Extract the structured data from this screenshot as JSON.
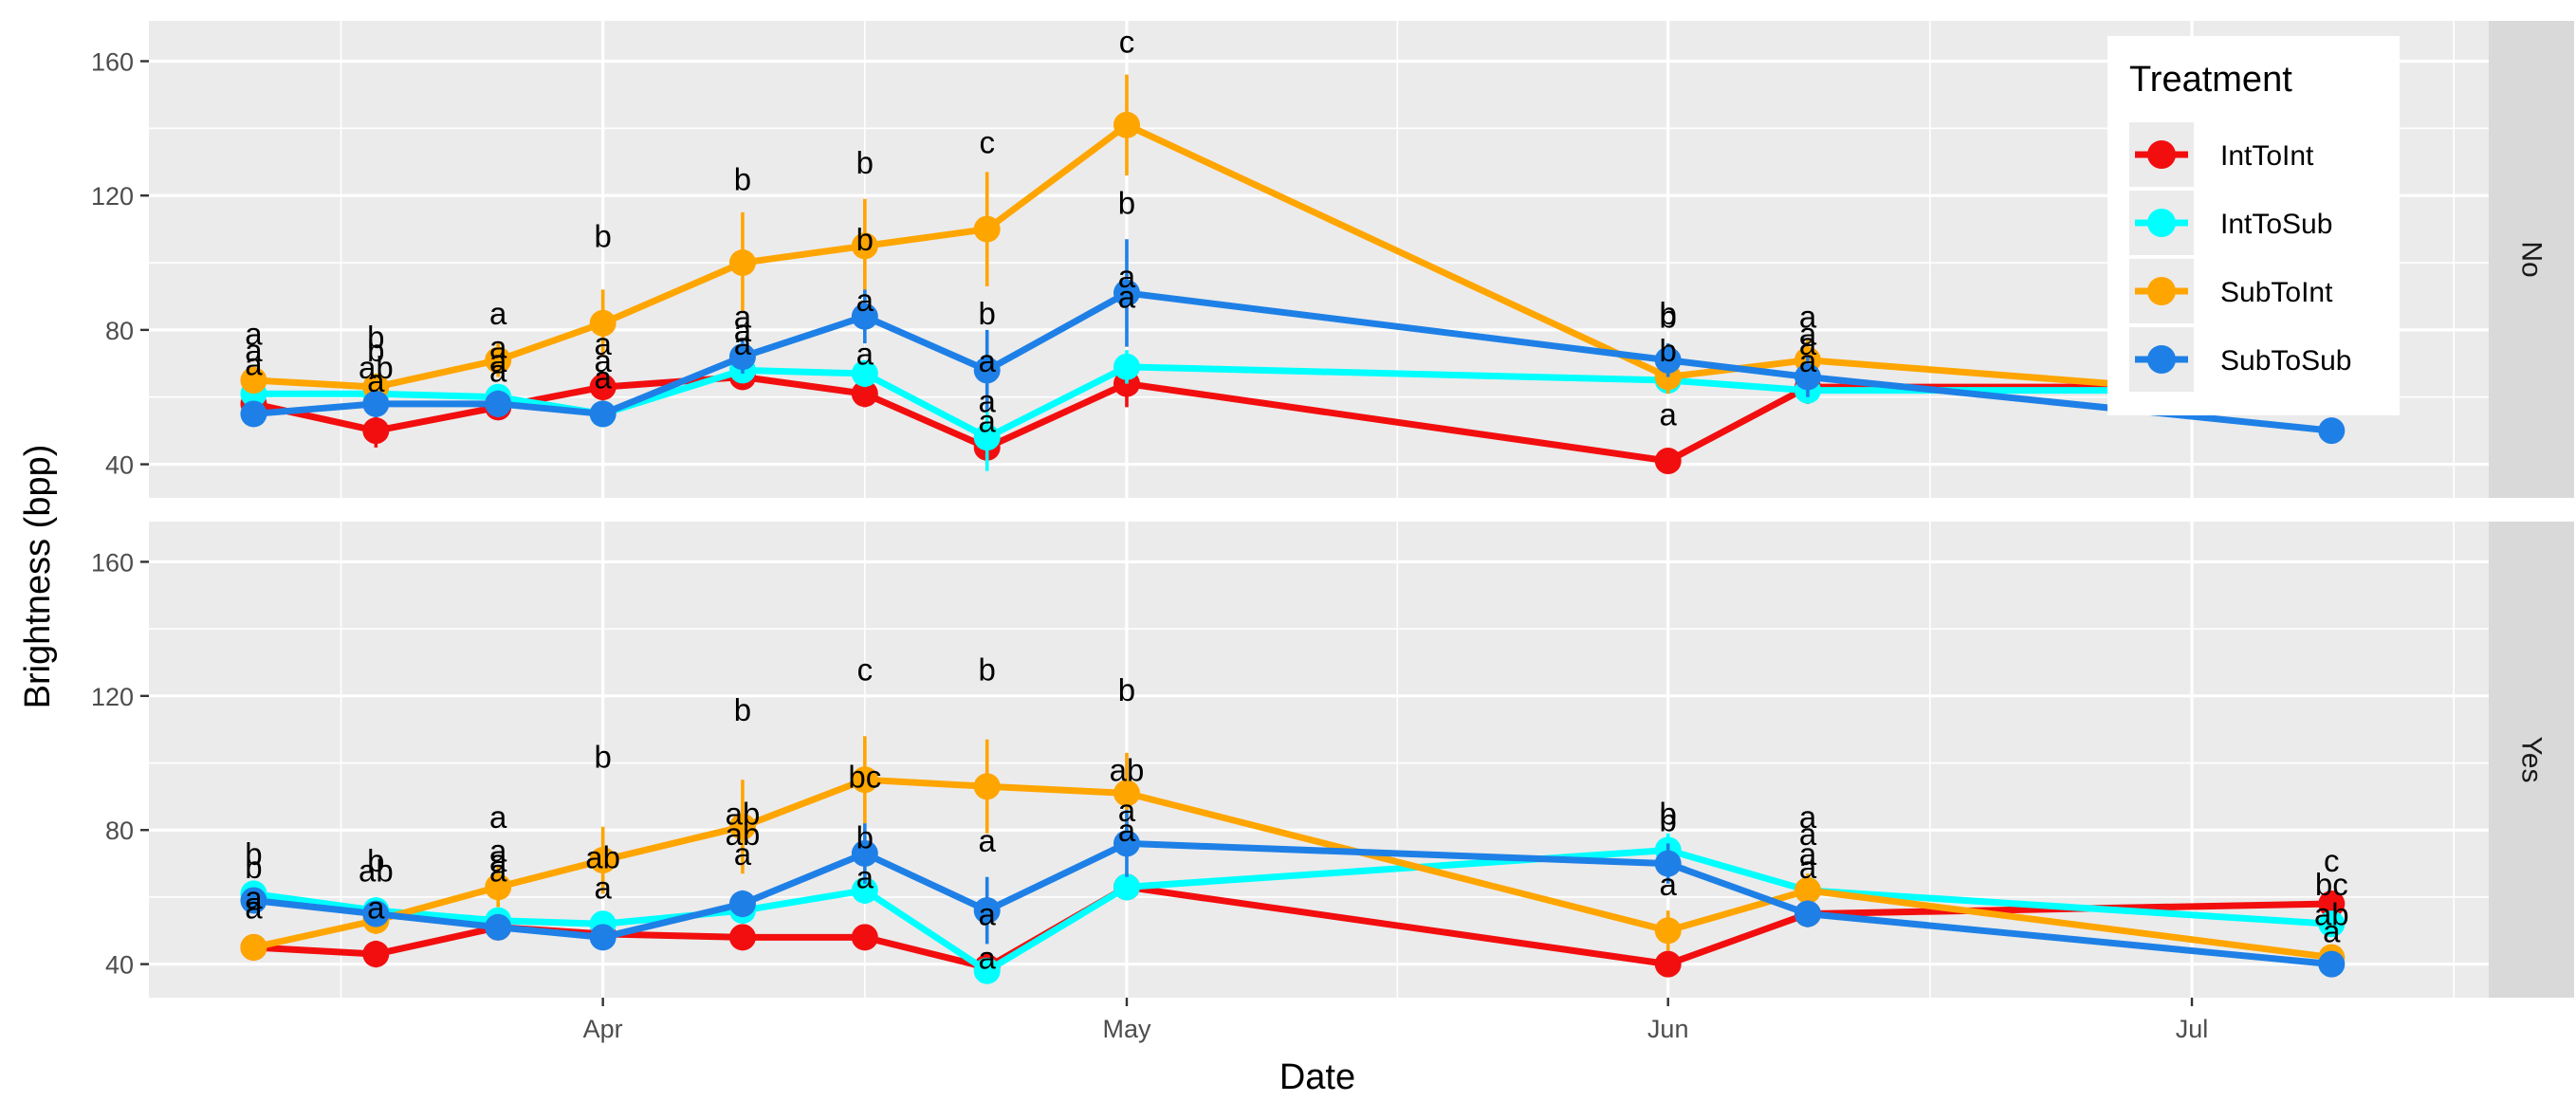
{
  "chart_data": {
    "type": "line",
    "xlabel": "Date",
    "ylabel": "Brightness (bpp)",
    "x_ticks": [
      {
        "date": "2021-04-01",
        "label": "Apr"
      },
      {
        "date": "2021-05-01",
        "label": "May"
      },
      {
        "date": "2021-06-01",
        "label": "Jun"
      },
      {
        "date": "2021-07-01",
        "label": "Jul"
      }
    ],
    "x_range": [
      "2021-03-06",
      "2021-07-18"
    ],
    "y_ticks": [
      40,
      80,
      120,
      160
    ],
    "ylim": [
      30,
      172
    ],
    "grid": true,
    "legend": {
      "title": "Treatment",
      "placement": "top-right",
      "entries": [
        "IntToInt",
        "IntToSub",
        "SubToInt",
        "SubToSub"
      ]
    },
    "colors": {
      "IntToInt": "#f20e0e",
      "IntToSub": "#00ffff",
      "SubToInt": "#ffa500",
      "SubToSub": "#1e80e6"
    },
    "panels": [
      {
        "label": "No",
        "series": [
          {
            "name": "IntToInt",
            "dates": [
              "2021-03-12",
              "2021-03-19",
              "2021-03-26",
              "2021-04-01",
              "2021-04-09",
              "2021-04-16",
              "2021-04-23",
              "2021-05-01",
              "2021-06-01",
              "2021-06-09",
              "2021-07-09"
            ],
            "values": [
              58,
              50,
              57,
              63,
              66,
              61,
              45,
              64,
              41,
              63,
              63
            ],
            "errors": [
              3,
              5,
              3,
              4,
              3,
              4,
              5,
              7,
              3,
              5,
              3
            ]
          },
          {
            "name": "IntToSub",
            "dates": [
              "2021-03-12",
              "2021-03-19",
              "2021-03-26",
              "2021-04-01",
              "2021-04-09",
              "2021-04-16",
              "2021-04-23",
              "2021-05-01",
              "2021-06-01",
              "2021-06-09",
              "2021-07-09"
            ],
            "values": [
              61,
              61,
              60,
              55,
              68,
              67,
              48,
              69,
              65,
              62,
              62
            ],
            "errors": [
              3,
              3,
              3,
              3,
              3,
              4,
              10,
              5,
              4,
              3,
              3
            ]
          },
          {
            "name": "SubToInt",
            "dates": [
              "2021-03-12",
              "2021-03-19",
              "2021-03-26",
              "2021-04-01",
              "2021-04-09",
              "2021-04-16",
              "2021-04-23",
              "2021-05-01",
              "2021-06-01",
              "2021-06-09",
              "2021-07-09"
            ],
            "values": [
              65,
              63,
              71,
              82,
              100,
              105,
              110,
              141,
              66,
              71,
              59
            ],
            "errors": [
              4,
              4,
              5,
              10,
              15,
              14,
              17,
              15,
              5,
              6,
              4
            ]
          },
          {
            "name": "SubToSub",
            "dates": [
              "2021-03-12",
              "2021-03-19",
              "2021-03-26",
              "2021-04-01",
              "2021-04-09",
              "2021-04-16",
              "2021-04-23",
              "2021-05-01",
              "2021-06-01",
              "2021-06-09",
              "2021-07-09"
            ],
            "values": [
              55,
              58,
              58,
              55,
              72,
              84,
              68,
              91,
              71,
              66,
              50
            ],
            "errors": [
              3,
              4,
              4,
              3,
              5,
              8,
              12,
              16,
              5,
              6,
              3
            ]
          }
        ],
        "significance_labels": [
          {
            "date": "2021-03-12",
            "value": 79,
            "text": "a"
          },
          {
            "date": "2021-03-12",
            "value": 74,
            "text": "a"
          },
          {
            "date": "2021-03-12",
            "value": 70,
            "text": "a"
          },
          {
            "date": "2021-03-19",
            "value": 78,
            "text": "b"
          },
          {
            "date": "2021-03-19",
            "value": 74,
            "text": "b"
          },
          {
            "date": "2021-03-19",
            "value": 69,
            "text": "ab"
          },
          {
            "date": "2021-03-19",
            "value": 65,
            "text": "a"
          },
          {
            "date": "2021-03-26",
            "value": 85,
            "text": "a"
          },
          {
            "date": "2021-03-26",
            "value": 75,
            "text": "a"
          },
          {
            "date": "2021-03-26",
            "value": 71,
            "text": "a"
          },
          {
            "date": "2021-03-26",
            "value": 68,
            "text": "a"
          },
          {
            "date": "2021-04-01",
            "value": 108,
            "text": "b"
          },
          {
            "date": "2021-04-01",
            "value": 76,
            "text": "a"
          },
          {
            "date": "2021-04-01",
            "value": 71,
            "text": "a"
          },
          {
            "date": "2021-04-01",
            "value": 66,
            "text": "a"
          },
          {
            "date": "2021-04-09",
            "value": 125,
            "text": "b"
          },
          {
            "date": "2021-04-09",
            "value": 84,
            "text": "a"
          },
          {
            "date": "2021-04-09",
            "value": 80,
            "text": "a"
          },
          {
            "date": "2021-04-09",
            "value": 76,
            "text": "a"
          },
          {
            "date": "2021-04-16",
            "value": 130,
            "text": "b"
          },
          {
            "date": "2021-04-16",
            "value": 107,
            "text": "b"
          },
          {
            "date": "2021-04-16",
            "value": 89,
            "text": "a"
          },
          {
            "date": "2021-04-16",
            "value": 73,
            "text": "a"
          },
          {
            "date": "2021-04-23",
            "value": 136,
            "text": "c"
          },
          {
            "date": "2021-04-23",
            "value": 85,
            "text": "b"
          },
          {
            "date": "2021-04-23",
            "value": 71,
            "text": "a"
          },
          {
            "date": "2021-04-23",
            "value": 59,
            "text": "a"
          },
          {
            "date": "2021-04-23",
            "value": 53,
            "text": "a"
          },
          {
            "date": "2021-05-01",
            "value": 166,
            "text": "c"
          },
          {
            "date": "2021-05-01",
            "value": 118,
            "text": "b"
          },
          {
            "date": "2021-05-01",
            "value": 96,
            "text": "a"
          },
          {
            "date": "2021-05-01",
            "value": 90,
            "text": "a"
          },
          {
            "date": "2021-06-01",
            "value": 85,
            "text": "b"
          },
          {
            "date": "2021-06-01",
            "value": 84,
            "text": "b"
          },
          {
            "date": "2021-06-01",
            "value": 74,
            "text": "b"
          },
          {
            "date": "2021-06-01",
            "value": 55,
            "text": "a"
          },
          {
            "date": "2021-06-09",
            "value": 84,
            "text": "a"
          },
          {
            "date": "2021-06-09",
            "value": 79,
            "text": "a"
          },
          {
            "date": "2021-06-09",
            "value": 76,
            "text": "a"
          },
          {
            "date": "2021-06-09",
            "value": 71,
            "text": "a"
          }
        ]
      },
      {
        "label": "Yes",
        "series": [
          {
            "name": "IntToInt",
            "dates": [
              "2021-03-12",
              "2021-03-19",
              "2021-03-26",
              "2021-04-01",
              "2021-04-09",
              "2021-04-16",
              "2021-04-23",
              "2021-05-01",
              "2021-06-01",
              "2021-06-09",
              "2021-07-09"
            ],
            "values": [
              45,
              43,
              51,
              49,
              48,
              48,
              39,
              63,
              40,
              55,
              58
            ],
            "errors": [
              3,
              4,
              3,
              3,
              3,
              3,
              4,
              4,
              3,
              3,
              3
            ]
          },
          {
            "name": "IntToSub",
            "dates": [
              "2021-03-12",
              "2021-03-19",
              "2021-03-26",
              "2021-04-01",
              "2021-04-09",
              "2021-04-16",
              "2021-04-23",
              "2021-05-01",
              "2021-06-01",
              "2021-06-09",
              "2021-07-09"
            ],
            "values": [
              61,
              56,
              53,
              52,
              56,
              62,
              38,
              63,
              74,
              62,
              52
            ],
            "errors": [
              3,
              3,
              3,
              3,
              3,
              4,
              3,
              4,
              5,
              4,
              3
            ]
          },
          {
            "name": "SubToInt",
            "dates": [
              "2021-03-12",
              "2021-03-19",
              "2021-03-26",
              "2021-04-01",
              "2021-04-09",
              "2021-04-16",
              "2021-04-23",
              "2021-05-01",
              "2021-06-01",
              "2021-06-09",
              "2021-07-09"
            ],
            "values": [
              45,
              53,
              63,
              71,
              81,
              95,
              93,
              91,
              50,
              62,
              42
            ],
            "errors": [
              4,
              4,
              6,
              10,
              14,
              13,
              14,
              12,
              6,
              5,
              3
            ]
          },
          {
            "name": "SubToSub",
            "dates": [
              "2021-03-12",
              "2021-03-19",
              "2021-03-26",
              "2021-04-01",
              "2021-04-09",
              "2021-04-16",
              "2021-04-23",
              "2021-05-01",
              "2021-06-01",
              "2021-06-09",
              "2021-07-09"
            ],
            "values": [
              59,
              55,
              51,
              48,
              58,
              73,
              56,
              76,
              70,
              55,
              40
            ],
            "errors": [
              3,
              3,
              3,
              3,
              4,
              9,
              10,
              10,
              6,
              4,
              2
            ]
          }
        ],
        "significance_labels": [
          {
            "date": "2021-03-12",
            "value": 73,
            "text": "b"
          },
          {
            "date": "2021-03-12",
            "value": 69,
            "text": "b"
          },
          {
            "date": "2021-03-12",
            "value": 60,
            "text": "a"
          },
          {
            "date": "2021-03-12",
            "value": 57,
            "text": "a"
          },
          {
            "date": "2021-03-19",
            "value": 71,
            "text": "b"
          },
          {
            "date": "2021-03-19",
            "value": 68,
            "text": "ab"
          },
          {
            "date": "2021-03-19",
            "value": 57,
            "text": "a"
          },
          {
            "date": "2021-03-26",
            "value": 84,
            "text": "a"
          },
          {
            "date": "2021-03-26",
            "value": 74,
            "text": "a"
          },
          {
            "date": "2021-03-26",
            "value": 71,
            "text": "a"
          },
          {
            "date": "2021-03-26",
            "value": 68,
            "text": "a"
          },
          {
            "date": "2021-04-01",
            "value": 102,
            "text": "b"
          },
          {
            "date": "2021-04-01",
            "value": 72,
            "text": "ab"
          },
          {
            "date": "2021-04-01",
            "value": 63,
            "text": "a"
          },
          {
            "date": "2021-04-09",
            "value": 116,
            "text": "b"
          },
          {
            "date": "2021-04-09",
            "value": 85,
            "text": "ab"
          },
          {
            "date": "2021-04-09",
            "value": 79,
            "text": "ab"
          },
          {
            "date": "2021-04-09",
            "value": 73,
            "text": "a"
          },
          {
            "date": "2021-04-16",
            "value": 128,
            "text": "c"
          },
          {
            "date": "2021-04-16",
            "value": 96,
            "text": "bc"
          },
          {
            "date": "2021-04-16",
            "value": 78,
            "text": "b"
          },
          {
            "date": "2021-04-16",
            "value": 66,
            "text": "a"
          },
          {
            "date": "2021-04-23",
            "value": 128,
            "text": "b"
          },
          {
            "date": "2021-04-23",
            "value": 77,
            "text": "a"
          },
          {
            "date": "2021-04-23",
            "value": 55,
            "text": "a"
          },
          {
            "date": "2021-04-23",
            "value": 42,
            "text": "a"
          },
          {
            "date": "2021-05-01",
            "value": 122,
            "text": "b"
          },
          {
            "date": "2021-05-01",
            "value": 98,
            "text": "ab"
          },
          {
            "date": "2021-05-01",
            "value": 86,
            "text": "a"
          },
          {
            "date": "2021-05-01",
            "value": 80,
            "text": "a"
          },
          {
            "date": "2021-06-01",
            "value": 85,
            "text": "b"
          },
          {
            "date": "2021-06-01",
            "value": 83,
            "text": "b"
          },
          {
            "date": "2021-06-01",
            "value": 64,
            "text": "a"
          },
          {
            "date": "2021-06-09",
            "value": 84,
            "text": "a"
          },
          {
            "date": "2021-06-09",
            "value": 79,
            "text": "a"
          },
          {
            "date": "2021-06-09",
            "value": 73,
            "text": "a"
          },
          {
            "date": "2021-06-09",
            "value": 69,
            "text": "a"
          },
          {
            "date": "2021-07-09",
            "value": 71,
            "text": "c"
          },
          {
            "date": "2021-07-09",
            "value": 64,
            "text": "bc"
          },
          {
            "date": "2021-07-09",
            "value": 55,
            "text": "ab"
          },
          {
            "date": "2021-07-09",
            "value": 50,
            "text": "a"
          }
        ]
      }
    ]
  }
}
